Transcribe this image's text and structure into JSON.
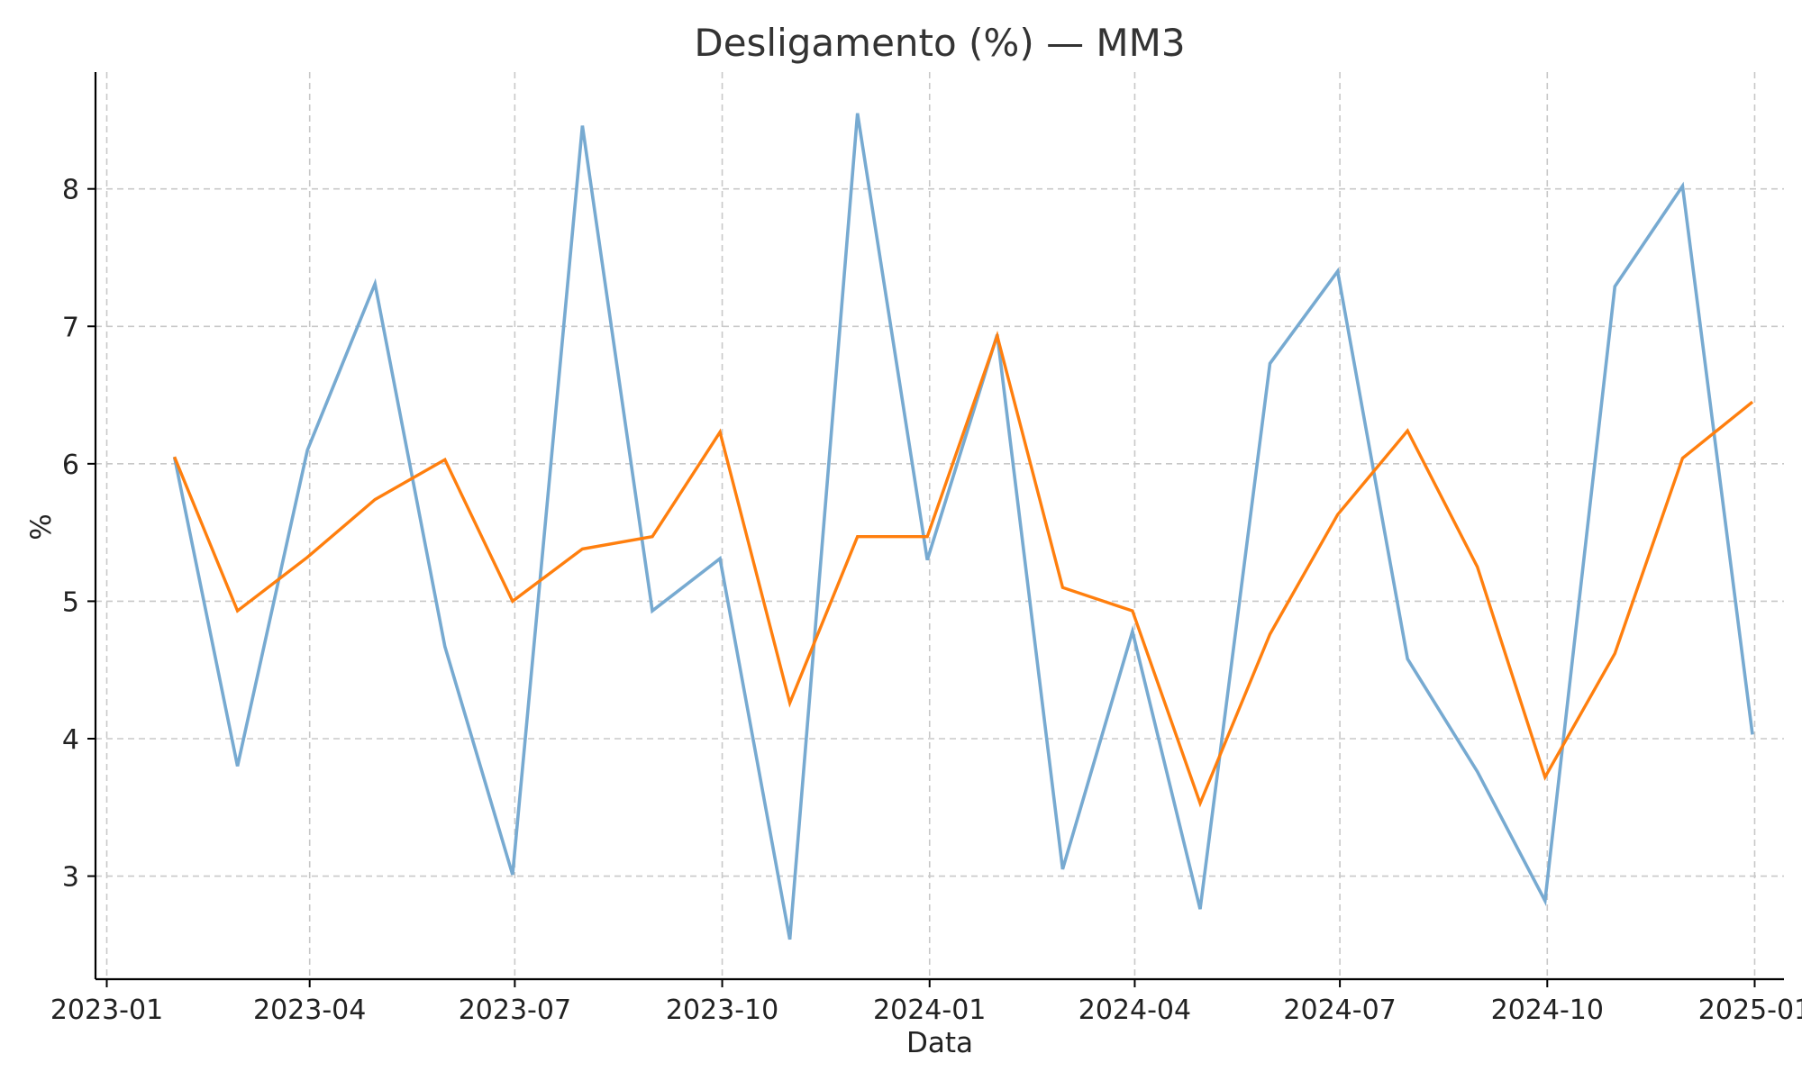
{
  "chart_data": {
    "type": "line",
    "title": "Desligamento (%) — MM3",
    "xlabel": "Data",
    "ylabel": "%",
    "grid": true,
    "xlim": [
      "2022-12-27",
      "2025-01-14"
    ],
    "ylim": [
      2.25,
      8.85
    ],
    "x_ticks": [
      "2023-01-01",
      "2023-04-01",
      "2023-07-01",
      "2023-10-01",
      "2024-01-01",
      "2024-04-01",
      "2024-07-01",
      "2024-10-01",
      "2025-01-01"
    ],
    "x_tick_labels": [
      "2023-01",
      "2023-04",
      "2023-07",
      "2023-10",
      "2024-01",
      "2024-04",
      "2024-07",
      "2024-10",
      "2025-01"
    ],
    "y_ticks": [
      3,
      4,
      5,
      6,
      7,
      8
    ],
    "y_tick_labels": [
      "3",
      "4",
      "5",
      "6",
      "7",
      "8"
    ],
    "x": [
      "2023-01-31",
      "2023-02-28",
      "2023-03-31",
      "2023-04-30",
      "2023-05-31",
      "2023-06-30",
      "2023-07-31",
      "2023-08-31",
      "2023-09-30",
      "2023-10-31",
      "2023-11-30",
      "2023-12-31",
      "2024-01-31",
      "2024-02-29",
      "2024-03-31",
      "2024-04-30",
      "2024-05-31",
      "2024-06-30",
      "2024-07-31",
      "2024-08-31",
      "2024-09-30",
      "2024-10-31",
      "2024-11-30",
      "2024-12-31"
    ],
    "series": [
      {
        "color": "#77aad1",
        "values": [
          6.05,
          3.8,
          6.1,
          7.31,
          4.67,
          3.01,
          8.46,
          4.93,
          5.31,
          2.54,
          8.55,
          5.3,
          6.94,
          3.05,
          4.78,
          2.76,
          6.73,
          7.4,
          4.58,
          3.76,
          2.82,
          7.29,
          8.02,
          4.03
        ]
      },
      {
        "color": "#ff7f0e",
        "values": [
          6.05,
          4.93,
          5.32,
          5.74,
          6.03,
          5.0,
          5.38,
          5.47,
          6.23,
          4.26,
          5.47,
          5.47,
          6.93,
          5.1,
          4.93,
          3.53,
          4.76,
          5.63,
          6.24,
          5.25,
          3.72,
          4.62,
          6.04,
          6.45
        ]
      }
    ]
  }
}
